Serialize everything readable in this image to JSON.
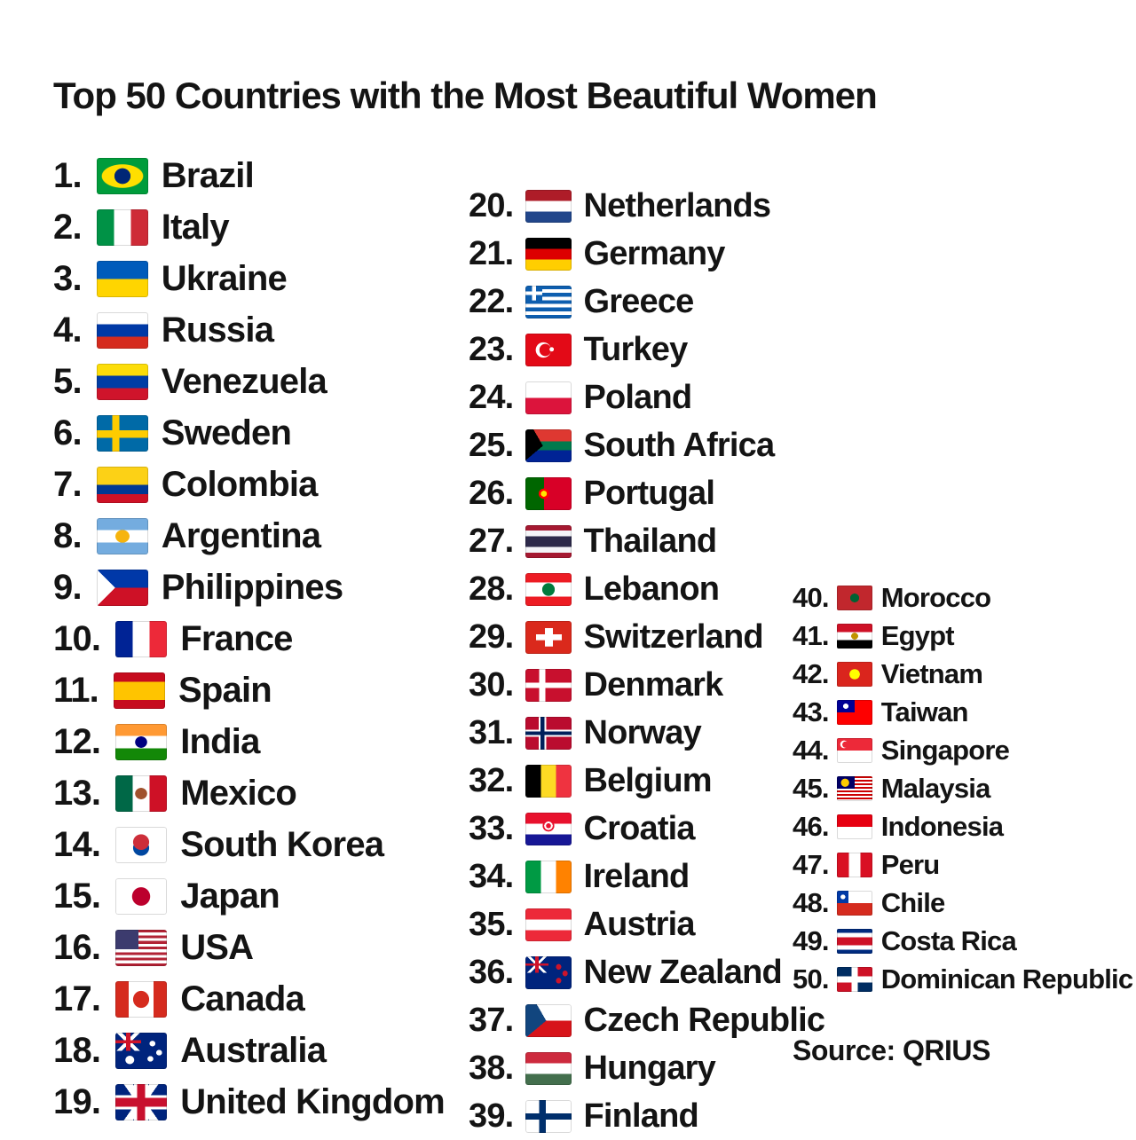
{
  "title": "Top 50 Countries with the Most Beautiful Women",
  "source_label": "Source: QRIUS",
  "text_color": "#141414",
  "background_color": "#ffffff",
  "columns": [
    {
      "name": "ranks-1-19",
      "items": [
        {
          "rank": "1.",
          "country": "Brazil",
          "flag": "brazil-flag",
          "flag_css": "radial-gradient(16% 22% at 50% 50%, #002776 96%, transparent), radial-gradient(41% 33% at 50% 50%, #ffdf00 96%, transparent), #009c3b"
        },
        {
          "rank": "2.",
          "country": "Italy",
          "flag": "italy-flag",
          "flag_css": "linear-gradient(90deg, #009246 0 33.4%, #ffffff 0 66.7%, #ce2b37 0)"
        },
        {
          "rank": "3.",
          "country": "Ukraine",
          "flag": "ukraine-flag",
          "flag_css": "linear-gradient(180deg, #005bbb 0 50%, #ffd500 0)"
        },
        {
          "rank": "4.",
          "country": "Russia",
          "flag": "russia-flag",
          "flag_css": "linear-gradient(180deg, #ffffff 0 33.4%, #0039a6 0 66.7%, #d52b1e 0)"
        },
        {
          "rank": "5.",
          "country": "Venezuela",
          "flag": "venezuela-flag",
          "flag_css": "linear-gradient(180deg, #fcdd09 0 33.4%, #003da5 0 66.7%, #cf142b 0)"
        },
        {
          "rank": "6.",
          "country": "Sweden",
          "flag": "sweden-flag",
          "flag_css": "linear-gradient(90deg, transparent 0 30%, #fecc00 0 44%, transparent 0), linear-gradient(180deg, transparent 0 42%, #fecc00 0 62%, transparent 0), #006aa7"
        },
        {
          "rank": "7.",
          "country": "Colombia",
          "flag": "colombia-flag",
          "flag_css": "linear-gradient(180deg, #fcd116 0 50%, #003893 0 75%, #ce1126 0)"
        },
        {
          "rank": "8.",
          "country": "Argentina",
          "flag": "argentina-flag",
          "flag_css": "radial-gradient(14% 18% at 50% 50%, #f6b40e 95%, transparent), linear-gradient(180deg, #74acdf 0 33.4%, #ffffff 0 66.7%, #74acdf 0)"
        },
        {
          "rank": "9.",
          "country": "Philippines",
          "flag": "philippines-flag",
          "flag_css": "conic-gradient(from 225deg at 36% 50%, #ffffff 0 90deg, transparent 0), linear-gradient(180deg, #0038a8 0 50%, #ce1126 0)"
        },
        {
          "rank": "10.",
          "country": "France",
          "flag": "france-flag",
          "flag_css": "linear-gradient(90deg, #002395 0 33.4%, #ffffff 0 66.7%, #ed2939 0)"
        },
        {
          "rank": "11.",
          "country": "Spain",
          "flag": "spain-flag",
          "flag_css": "linear-gradient(180deg, #c60b1e 0 25%, #ffc400 0 75%, #c60b1e 0)"
        },
        {
          "rank": "12.",
          "country": "India",
          "flag": "india-flag",
          "flag_css": "radial-gradient(12% 16% at 50% 50%, #000080 95%, transparent), linear-gradient(180deg, #ff9933 0 33.4%, #ffffff 0 66.7%, #138808 0)"
        },
        {
          "rank": "13.",
          "country": "Mexico",
          "flag": "mexico-flag",
          "flag_css": "radial-gradient(12% 16% at 50% 50%, #a0522d 95%, transparent), linear-gradient(90deg, #006847 0 33.4%, #ffffff 0 66.7%, #ce1126 0)"
        },
        {
          "rank": "14.",
          "country": "South Korea",
          "flag": "south-korea-flag",
          "flag_css": "radial-gradient(16% 22% at 50% 42%, #cd2e3a 95%, transparent), radial-gradient(16% 22% at 50% 58%, #0047a0 95%, transparent), #ffffff"
        },
        {
          "rank": "15.",
          "country": "Japan",
          "flag": "japan-flag",
          "flag_css": "radial-gradient(18% 26% at 50% 50%, #bc002d 95%, transparent), #ffffff"
        },
        {
          "rank": "16.",
          "country": "USA",
          "flag": "usa-flag",
          "flag_css": "linear-gradient(#3c3b6e, #3c3b6e) 0 0/45% 54% no-repeat, repeating-linear-gradient(180deg, #b22234 0 7.7%, #ffffff 0 15.4%)"
        },
        {
          "rank": "17.",
          "country": "Canada",
          "flag": "canada-flag",
          "flag_css": "linear-gradient(90deg, #d52b1e 0 26%, transparent 0 74%, #d52b1e 0), radial-gradient(16% 24% at 50% 50%, #d52b1e 95%, transparent), #ffffff"
        },
        {
          "rank": "18.",
          "country": "Australia",
          "flag": "australia-flag",
          "flag_css": "radial-gradient(6% 8% at 72% 30%, #ffffff 90%, transparent), radial-gradient(6% 8% at 85% 55%, #ffffff 90%, transparent), radial-gradient(6% 8% at 68% 72%, #ffffff 90%, transparent), radial-gradient(9% 12% at 28% 75%, #ffffff 90%, transparent), linear-gradient(90deg, transparent 0 42%, #cf142b 0 58%, transparent 0) 0 0/50% 50% no-repeat, linear-gradient(180deg, transparent 0 42%, #cf142b 0 58%, transparent 0) 0 0/50% 50% no-repeat, linear-gradient(45deg, transparent 0 44%, #ffffff 0 56%, transparent 0) 0 0/50% 50% no-repeat, linear-gradient(-45deg, transparent 0 44%, #ffffff 0 56%, transparent 0) 0 0/50% 50% no-repeat, #00247d"
        },
        {
          "rank": "19.",
          "country": "United Kingdom",
          "flag": "united-kingdom-flag",
          "flag_css": "linear-gradient(90deg, transparent 0 42%, #c8102e 0 58%, transparent 0), linear-gradient(180deg, transparent 0 38%, #c8102e 0 62%, transparent 0), linear-gradient(90deg, transparent 0 36%, #ffffff 0 64%, transparent 0), linear-gradient(180deg, transparent 0 30%, #ffffff 0 70%, transparent 0), linear-gradient(55deg, transparent 0 44%, #ffffff 0 56%, transparent 0), linear-gradient(125deg, transparent 0 44%, #ffffff 0 56%, transparent 0), #00247d"
        }
      ]
    },
    {
      "name": "ranks-20-39",
      "items": [
        {
          "rank": "20.",
          "country": "Netherlands",
          "flag": "netherlands-flag",
          "flag_css": "linear-gradient(180deg, #ae1c28 0 33.4%, #ffffff 0 66.7%, #21468b 0)"
        },
        {
          "rank": "21.",
          "country": "Germany",
          "flag": "germany-flag",
          "flag_css": "linear-gradient(180deg, #000000 0 33.4%, #dd0000 0 66.7%, #ffce00 0)"
        },
        {
          "rank": "22.",
          "country": "Greece",
          "flag": "greece-flag",
          "flag_css": "linear-gradient(90deg, transparent 0 38%, #ffffff 0 62%, transparent 0) 0 0/37% 45% no-repeat, linear-gradient(180deg, transparent 0 38%, #ffffff 0 62%, transparent 0) 0 0/37% 45% no-repeat, linear-gradient(#0d5eaf, #0d5eaf) 0 0/37% 45% no-repeat, repeating-linear-gradient(180deg, #0d5eaf 0 11.12%, #ffffff 0 22.24%)"
        },
        {
          "rank": "23.",
          "country": "Turkey",
          "flag": "turkey-flag",
          "flag_css": "radial-gradient(5% 7% at 57% 48%, #ffffff 90%, transparent), radial-gradient(13% 19% at 43% 50%, #e30a17 95%, transparent), radial-gradient(17% 24% at 39% 50%, #ffffff 95%, transparent), #e30a17"
        },
        {
          "rank": "24.",
          "country": "Poland",
          "flag": "poland-flag",
          "flag_css": "linear-gradient(180deg, #ffffff 0 50%, #dc143c 0)"
        },
        {
          "rank": "25.",
          "country": "South Africa",
          "flag": "south-africa-flag",
          "flag_css": "conic-gradient(from 230deg at 38% 50%, #000000 0 100deg, transparent 0), linear-gradient(180deg, transparent 0 36%, #007a4d 0 64%, transparent 0), linear-gradient(180deg, #de3831 0 50%, #002395 0)"
        },
        {
          "rank": "26.",
          "country": "Portugal",
          "flag": "portugal-flag",
          "flag_css": "radial-gradient(16% 22% at 40% 50%, #ffe600 40%, #ff0000 42% 70%, transparent 72%), linear-gradient(90deg, #006600 0 40%, #d80027 0)"
        },
        {
          "rank": "27.",
          "country": "Thailand",
          "flag": "thailand-flag",
          "flag_css": "linear-gradient(180deg, #a51931 0 16.7%, #f4f5f8 0 33.4%, #2d2a4a 0 66.7%, #f4f5f8 0 83.4%, #a51931 0)"
        },
        {
          "rank": "28.",
          "country": "Lebanon",
          "flag": "lebanon-flag",
          "flag_css": "radial-gradient(14% 20% at 50% 50%, #007a3d 95%, transparent), linear-gradient(180deg, #ed1c24 0 28%, #ffffff 0 72%, #ed1c24 0)"
        },
        {
          "rank": "29.",
          "country": "Switzerland",
          "flag": "switzerland-flag",
          "flag_css": "linear-gradient(#ffffff, #ffffff) 50% 50%/18% 56% no-repeat, linear-gradient(#ffffff, #ffffff) 50% 50%/56% 18% no-repeat, #da291c"
        },
        {
          "rank": "30.",
          "country": "Denmark",
          "flag": "denmark-flag",
          "flag_css": "linear-gradient(90deg, transparent 0 30%, #ffffff 0 43%, transparent 0), linear-gradient(180deg, transparent 0 42%, #ffffff 0 58%, transparent 0), #c8102e"
        },
        {
          "rank": "31.",
          "country": "Norway",
          "flag": "norway-flag",
          "flag_css": "linear-gradient(90deg, transparent 0 33%, #00205b 0 41%, transparent 0), linear-gradient(180deg, transparent 0 45%, #00205b 0 55%, transparent 0), linear-gradient(90deg, transparent 0 29%, #ffffff 0 45%, transparent 0), linear-gradient(180deg, transparent 0 39%, #ffffff 0 61%, transparent 0), #ba0c2f"
        },
        {
          "rank": "32.",
          "country": "Belgium",
          "flag": "belgium-flag",
          "flag_css": "linear-gradient(90deg, #000000 0 33.4%, #fdda24 0 66.7%, #ef3340 0)"
        },
        {
          "rank": "33.",
          "country": "Croatia",
          "flag": "croatia-flag",
          "flag_css": "radial-gradient(13% 18% at 50% 40%, #e8112d 40%, #ffffff 42% 70%, #e8112d 72% 95%, transparent), linear-gradient(180deg, #e8112d 0 33.4%, #ffffff 0 66.7%, #171796 0)"
        },
        {
          "rank": "34.",
          "country": "Ireland",
          "flag": "ireland-flag",
          "flag_css": "linear-gradient(90deg, #009a44 0 33.4%, #ffffff 0 66.7%, #ff8200 0)"
        },
        {
          "rank": "35.",
          "country": "Austria",
          "flag": "austria-flag",
          "flag_css": "linear-gradient(180deg, #ed2939 0 33.4%, #ffffff 0 66.7%, #ed2939 0)"
        },
        {
          "rank": "36.",
          "country": "New Zealand",
          "flag": "new-zealand-flag",
          "flag_css": "radial-gradient(6% 9% at 72% 32%, #cc142b 90%, transparent), radial-gradient(6% 9% at 86% 52%, #cc142b 90%, transparent), radial-gradient(6% 9% at 72% 74%, #cc142b 90%, transparent), linear-gradient(90deg, transparent 0 42%, #cf142b 0 58%, transparent 0) 0 0/50% 50% no-repeat, linear-gradient(180deg, transparent 0 42%, #cf142b 0 58%, transparent 0) 0 0/50% 50% no-repeat, linear-gradient(45deg, transparent 0 45%, #ffffff 0 55%, transparent 0) 0 0/50% 50% no-repeat, linear-gradient(-45deg, transparent 0 45%, #ffffff 0 55%, transparent 0) 0 0/50% 50% no-repeat, #00247d"
        },
        {
          "rank": "37.",
          "country": "Czech Republic",
          "flag": "czech-republic-flag",
          "flag_css": "conic-gradient(from 230deg at 45% 50%, #11457e 0 100deg, transparent 0), linear-gradient(180deg, #ffffff 0 50%, #d7141a 0)"
        },
        {
          "rank": "38.",
          "country": "Hungary",
          "flag": "hungary-flag",
          "flag_css": "linear-gradient(180deg, #cd2a3e 0 33.4%, #ffffff 0 66.7%, #436f4d 0)"
        },
        {
          "rank": "39.",
          "country": "Finland",
          "flag": "finland-flag",
          "flag_css": "linear-gradient(90deg, transparent 0 30%, #002f6c 0 44%, transparent 0), linear-gradient(180deg, transparent 0 41%, #002f6c 0 59%, transparent 0), #ffffff"
        }
      ]
    },
    {
      "name": "ranks-40-50",
      "items": [
        {
          "rank": "40.",
          "country": "Morocco",
          "flag": "morocco-flag",
          "flag_css": "radial-gradient(13% 18% at 50% 50%, #006233 95%, transparent), #c1272d"
        },
        {
          "rank": "41.",
          "country": "Egypt",
          "flag": "egypt-flag",
          "flag_css": "radial-gradient(10% 14% at 50% 50%, #c09300 95%, transparent), linear-gradient(180deg, #ce1126 0 33.4%, #ffffff 0 66.7%, #000000 0)"
        },
        {
          "rank": "42.",
          "country": "Vietnam",
          "flag": "vietnam-flag",
          "flag_css": "radial-gradient(15% 21% at 50% 50%, #ffff00 95%, transparent), #da251d"
        },
        {
          "rank": "43.",
          "country": "Taiwan",
          "flag": "taiwan-flag",
          "flag_css": "radial-gradient(8% 11% at 25% 25%, #ffffff 90%, transparent), linear-gradient(#000095, #000095) 0 0/50% 50% no-repeat, #fe0000"
        },
        {
          "rank": "44.",
          "country": "Singapore",
          "flag": "singapore-flag",
          "flag_css": "radial-gradient(9% 13% at 24% 26%, #ed2939 92%, transparent), radial-gradient(11% 16% at 20% 25%, #ffffff 92%, transparent), linear-gradient(180deg, #ed2939 0 50%, #ffffff 0)"
        },
        {
          "rank": "45.",
          "country": "Malaysia",
          "flag": "malaysia-flag",
          "flag_css": "radial-gradient(12% 17% at 23% 26%, #ffcc00 92%, transparent), linear-gradient(#010066, #010066) 0 0/50% 50% no-repeat, repeating-linear-gradient(180deg, #cc0001 0 7.2%, #ffffff 0 14.4%)"
        },
        {
          "rank": "46.",
          "country": "Indonesia",
          "flag": "indonesia-flag",
          "flag_css": "linear-gradient(180deg, #e70011 0 50%, #ffffff 0)"
        },
        {
          "rank": "47.",
          "country": "Peru",
          "flag": "peru-flag",
          "flag_css": "linear-gradient(90deg, #d91023 0 33.4%, #ffffff 0 66.7%, #d91023 0)"
        },
        {
          "rank": "48.",
          "country": "Chile",
          "flag": "chile-flag",
          "flag_css": "radial-gradient(7% 10% at 17% 25%, #ffffff 90%, transparent), linear-gradient(90deg, #0039a6 0 33%, #ffffff 0) 0 0/100% 50% no-repeat, #d52b1e"
        },
        {
          "rank": "49.",
          "country": "Costa Rica",
          "flag": "costa-rica-flag",
          "flag_css": "linear-gradient(180deg, #002b7f 0 16.7%, #ffffff 0 33.4%, #ce1126 0 66.7%, #ffffff 0 83.4%, #002b7f 0)"
        },
        {
          "rank": "50.",
          "country": "Dominican Republic",
          "flag": "dominican-republic-flag",
          "flag_css": "linear-gradient(90deg, transparent 0 41%, #ffffff 0 59%, transparent 0), linear-gradient(180deg, transparent 0 38%, #ffffff 0 62%, transparent 0), conic-gradient(#ce1126 0 90deg, #002d62 0 180deg, #ce1126 0 270deg, #002d62 0)"
        }
      ]
    }
  ]
}
